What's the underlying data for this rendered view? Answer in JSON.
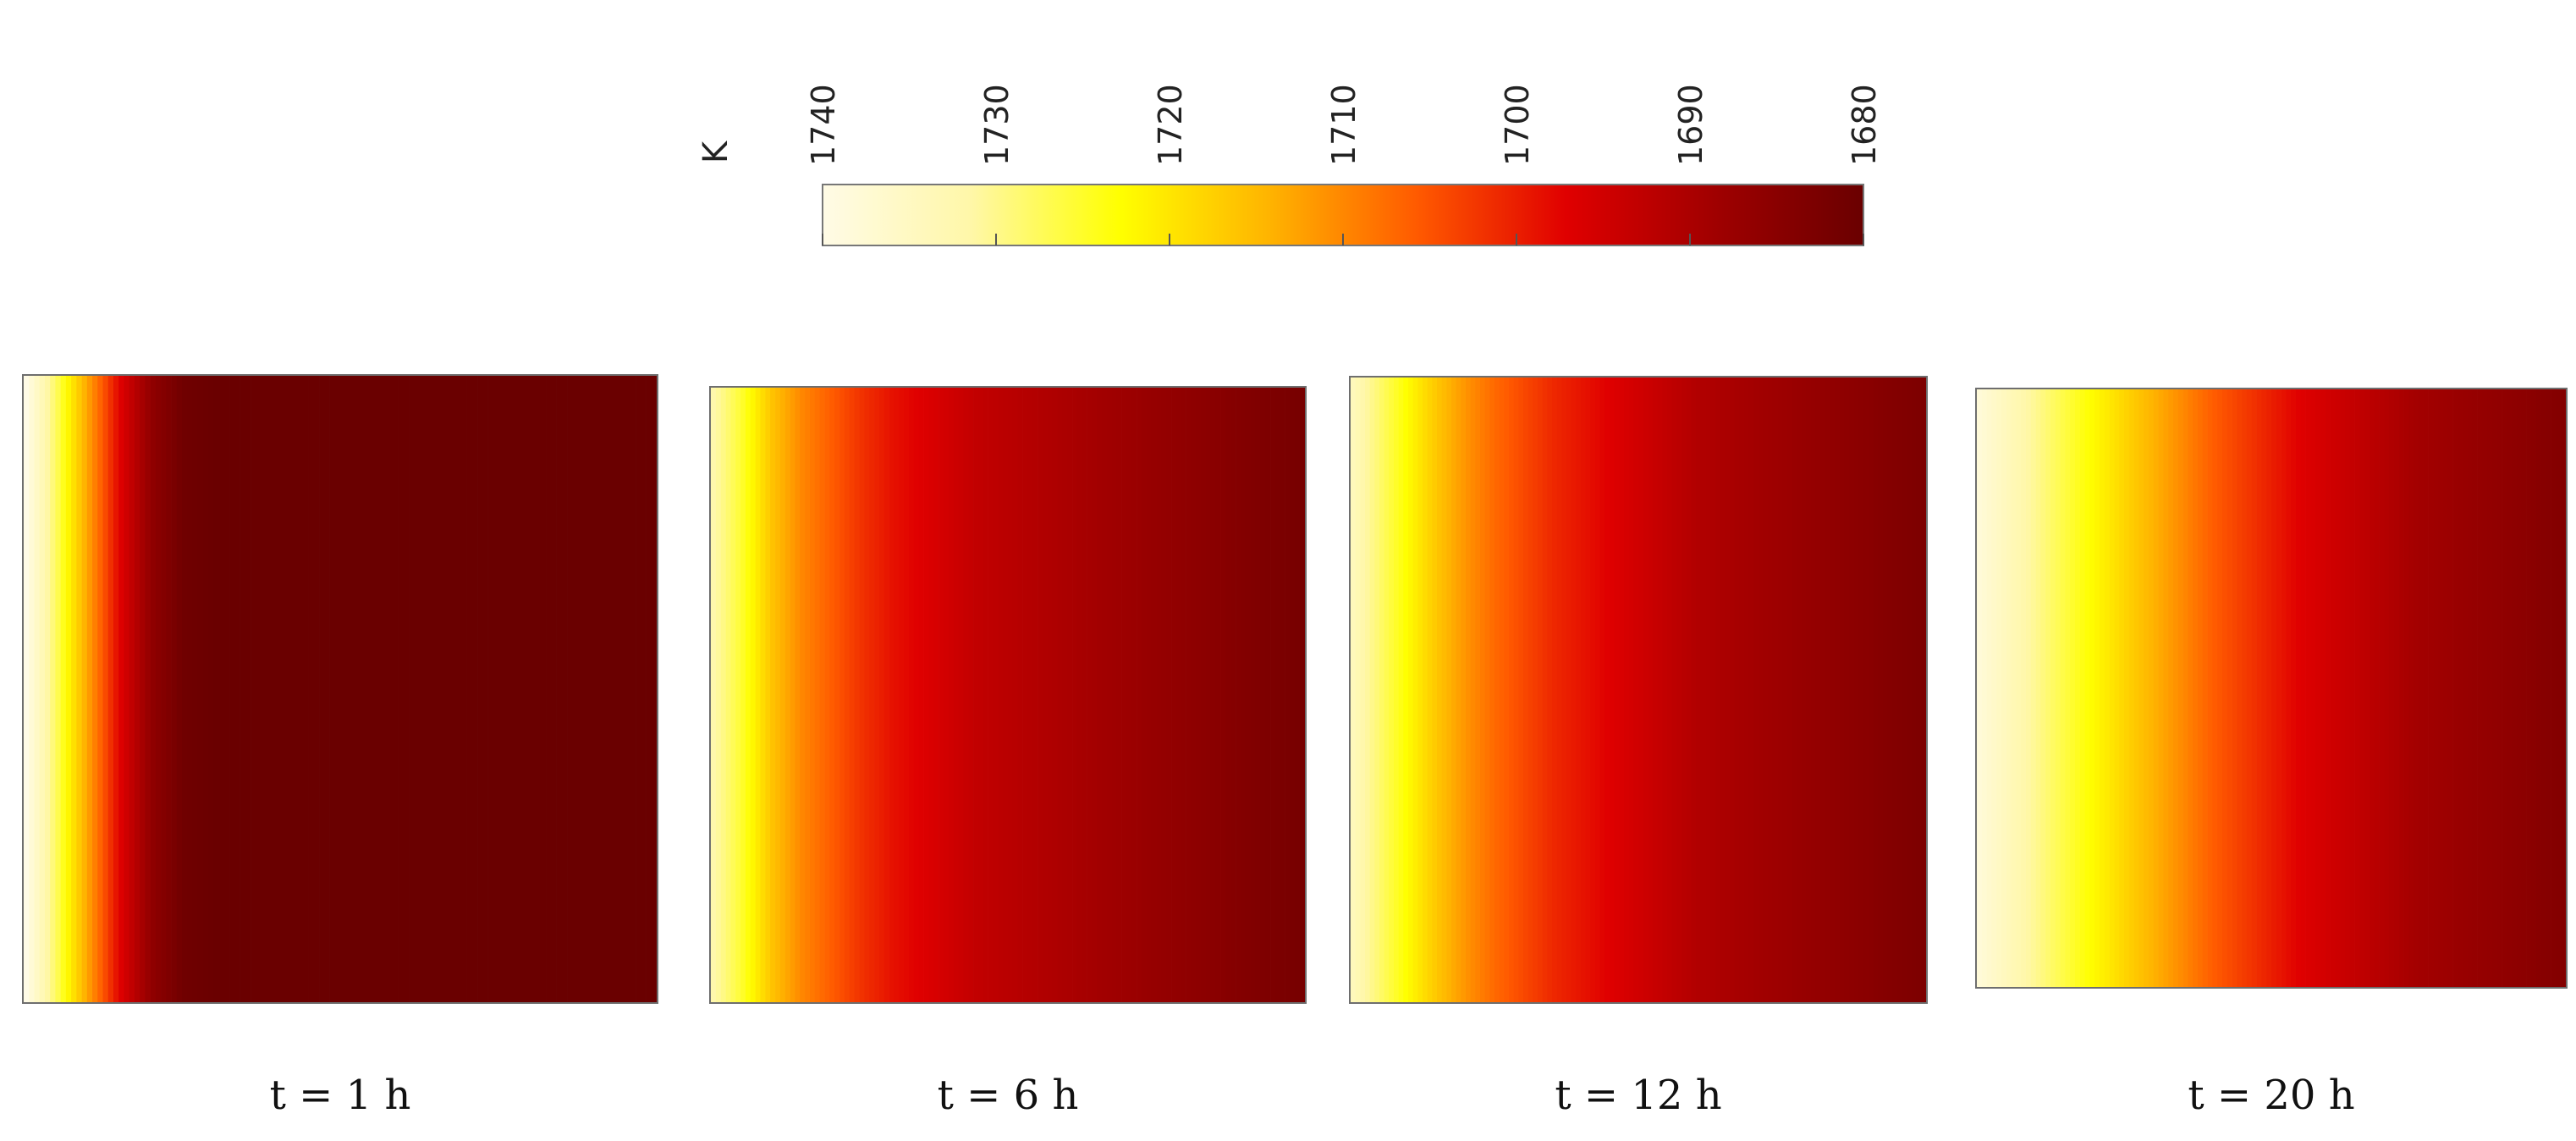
{
  "chart_data": {
    "type": "heatmap",
    "title": "",
    "colorbar": {
      "unit_label": "K",
      "ticks": [
        "1740",
        "1730",
        "1720",
        "1710",
        "1700",
        "1690",
        "1680"
      ],
      "range": [
        1680,
        1740
      ],
      "orientation": "horizontal",
      "placement": "top",
      "colors": [
        "#fffbe6",
        "#fff7a8",
        "#ffff00",
        "#ffb400",
        "#ff5a00",
        "#e00000",
        "#a00000",
        "#6a0000"
      ]
    },
    "panels": [
      {
        "label": "t = 1 h",
        "profile_K": [
          1740,
          1727,
          1712,
          1697,
          1686,
          1681,
          1680,
          1680,
          1680,
          1680,
          1680,
          1680,
          1680,
          1680,
          1680,
          1680,
          1680,
          1680,
          1680,
          1680,
          1680
        ]
      },
      {
        "label": "t = 6 h",
        "profile_K": [
          1732,
          1725,
          1716,
          1710,
          1706,
          1702,
          1699,
          1697,
          1695,
          1693,
          1692,
          1691,
          1690,
          1689,
          1688,
          1687,
          1686,
          1685,
          1684,
          1683,
          1682
        ]
      },
      {
        "label": "t = 12 h",
        "profile_K": [
          1734,
          1728,
          1722,
          1716,
          1711,
          1707,
          1704,
          1701,
          1699,
          1697,
          1695,
          1693,
          1691,
          1690,
          1689,
          1688,
          1687,
          1686,
          1685,
          1684,
          1683
        ]
      },
      {
        "label": "t = 20 h",
        "profile_K": [
          1738,
          1734,
          1730,
          1726,
          1722,
          1718,
          1714,
          1710,
          1706,
          1703,
          1700,
          1697,
          1695,
          1693,
          1691,
          1689,
          1688,
          1687,
          1686,
          1685,
          1684
        ]
      }
    ]
  }
}
